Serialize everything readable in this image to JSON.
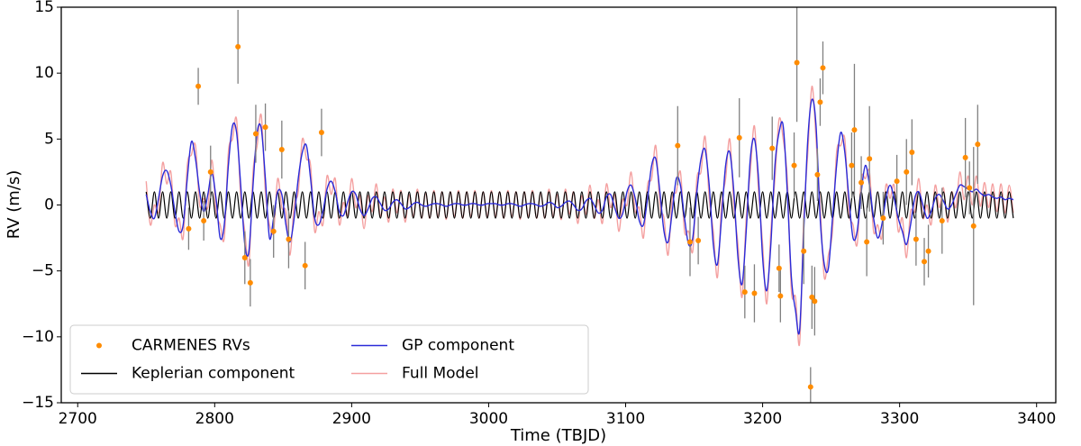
{
  "chart_data": {
    "type": "line",
    "x_label": "Time (TBJD)",
    "y_label": "RV (m/s)",
    "xlim": [
      2688,
      3414
    ],
    "ylim": [
      -15,
      15
    ],
    "xticks": [
      2700,
      2800,
      2900,
      3000,
      3100,
      3200,
      3300,
      3400
    ],
    "yticks": [
      {
        "value": -15,
        "label": "−15"
      },
      {
        "value": -10,
        "label": "−10"
      },
      {
        "value": -5,
        "label": "−5"
      },
      0,
      5,
      10,
      15
    ],
    "legend": "lower left",
    "legend_columns": 2,
    "x": [
      2750,
      2753,
      2756,
      2759,
      2762,
      2765,
      2768,
      2771,
      2774,
      2777,
      2780,
      2783,
      2786,
      2789,
      2792,
      2795,
      2798,
      2801,
      2804,
      2807,
      2810,
      2813,
      2816,
      2819,
      2822,
      2825,
      2828,
      2831,
      2834,
      2837,
      2840,
      2843,
      2846,
      2849,
      2852,
      2855,
      2858,
      2861,
      2864,
      2867,
      2870,
      2873,
      2876,
      2879,
      2882,
      2885,
      2888,
      2891,
      2894,
      2897,
      2900,
      2903,
      2906,
      2909,
      2912,
      2915,
      2918,
      2921,
      2924,
      2927,
      2930,
      2933,
      2936,
      2939,
      2942,
      2945,
      2948,
      2951,
      2954,
      2957,
      2960,
      2963,
      2966,
      2969,
      2972,
      2975,
      2978,
      2981,
      2984,
      2987,
      2990,
      2993,
      2996,
      2999,
      3002,
      3005,
      3008,
      3011,
      3014,
      3017,
      3020,
      3023,
      3026,
      3029,
      3032,
      3035,
      3038,
      3041,
      3044,
      3047,
      3050,
      3053,
      3056,
      3059,
      3062,
      3065,
      3068,
      3071,
      3074,
      3077,
      3080,
      3083,
      3086,
      3089,
      3092,
      3095,
      3098,
      3101,
      3104,
      3107,
      3110,
      3113,
      3116,
      3119,
      3122,
      3125,
      3128,
      3131,
      3134,
      3137,
      3140,
      3143,
      3146,
      3149,
      3152,
      3155,
      3158,
      3161,
      3164,
      3167,
      3170,
      3173,
      3176,
      3179,
      3182,
      3185,
      3188,
      3191,
      3194,
      3197,
      3200,
      3203,
      3206,
      3209,
      3212,
      3215,
      3218,
      3221,
      3224,
      3227,
      3230,
      3233,
      3236,
      3239,
      3242,
      3245,
      3248,
      3251,
      3254,
      3257,
      3260,
      3263,
      3266,
      3269,
      3272,
      3275,
      3278,
      3281,
      3284,
      3287,
      3290,
      3293,
      3296,
      3299,
      3302,
      3305,
      3308,
      3311,
      3314,
      3317,
      3320,
      3323,
      3326,
      3329,
      3332,
      3335,
      3338,
      3341,
      3344,
      3347,
      3350,
      3353,
      3356,
      3359,
      3362,
      3365,
      3368,
      3371,
      3374,
      3377,
      3380,
      3383
    ],
    "series": [
      {
        "name": "CARMENES RVs",
        "kind": "scatter",
        "color": "#ff8c00",
        "error_color": "#808080",
        "x": [
          2781,
          2788,
          2792,
          2797,
          2817,
          2822,
          2826,
          2830,
          2837,
          2843,
          2849,
          2854,
          2866,
          2878,
          3138,
          3147,
          3153,
          3183,
          3187,
          3194,
          3207,
          3212,
          3213,
          3223,
          3225,
          3230,
          3235,
          3236,
          3238,
          3240,
          3242,
          3244,
          3265,
          3267,
          3272,
          3276,
          3278,
          3288,
          3298,
          3305,
          3309,
          3312,
          3318,
          3321,
          3331,
          3348,
          3351,
          3354,
          3357
        ],
        "values": [
          -1.8,
          9.0,
          -1.2,
          2.5,
          12.0,
          -4.0,
          -5.9,
          5.4,
          5.9,
          -2.0,
          4.2,
          -2.6,
          -4.6,
          5.5,
          4.5,
          -2.8,
          -2.7,
          5.1,
          -6.6,
          -6.7,
          4.3,
          -4.8,
          -6.9,
          3.0,
          10.8,
          -3.5,
          -13.8,
          -7.0,
          -7.3,
          2.3,
          7.8,
          10.4,
          3.0,
          5.7,
          1.7,
          -2.8,
          3.5,
          -1.0,
          1.8,
          2.5,
          4.0,
          -2.6,
          -4.3,
          -3.5,
          -1.2,
          3.6,
          1.3,
          -1.6,
          4.6
        ],
        "errors": [
          1.6,
          1.4,
          1.5,
          2.0,
          2.8,
          2.0,
          1.8,
          2.2,
          1.8,
          2.0,
          2.2,
          2.2,
          1.8,
          1.8,
          3.0,
          2.6,
          1.8,
          3.0,
          2.0,
          2.2,
          2.4,
          1.8,
          2.0,
          2.5,
          4.5,
          2.5,
          1.5,
          2.4,
          2.6,
          2.0,
          1.8,
          2.0,
          2.5,
          5.0,
          2.0,
          2.6,
          4.0,
          2.0,
          2.0,
          2.5,
          2.5,
          2.0,
          1.8,
          2.0,
          2.5,
          3.0,
          2.0,
          6.0,
          3.0
        ]
      },
      {
        "name": "Keplerian component",
        "kind": "line",
        "color": "#000000",
        "values": [
          1,
          -1,
          1,
          -1,
          1,
          -1,
          1,
          -1,
          1,
          -1,
          1,
          -1,
          1,
          -1,
          1,
          -1,
          1,
          -1,
          1,
          -1,
          1,
          -1,
          1,
          -1,
          1,
          -1,
          1,
          -1,
          1,
          -1,
          1,
          -1,
          1,
          -1,
          1,
          -1,
          1,
          -1,
          1,
          -1,
          1,
          -1,
          1,
          -1,
          1,
          -1,
          1,
          -1,
          1,
          -1,
          1,
          -1,
          1,
          -1,
          1,
          -1,
          1,
          -1,
          1,
          -1,
          1,
          -1,
          1,
          -1,
          1,
          -1,
          1,
          -1,
          1,
          -1,
          1,
          -1,
          1,
          -1,
          1,
          -1,
          1,
          -1,
          1,
          -1,
          1,
          -1,
          1,
          -1,
          1,
          -1,
          1,
          -1,
          1,
          -1,
          1,
          -1,
          1,
          -1,
          1,
          -1,
          1,
          -1,
          1,
          -1,
          1,
          -1,
          1,
          -1,
          1,
          -1,
          1,
          -1,
          1,
          -1,
          1,
          -1,
          1,
          -1,
          1,
          -1,
          1,
          -1,
          1,
          -1,
          1,
          -1,
          1,
          -1,
          1,
          -1,
          1,
          -1,
          1,
          -1,
          1,
          -1,
          1,
          -1,
          1,
          -1,
          1,
          -1,
          1,
          -1,
          1,
          -1,
          1,
          -1,
          1,
          -1,
          1,
          -1,
          1,
          -1,
          1,
          -1,
          1,
          -1,
          1,
          -1,
          1,
          -1,
          1,
          -1,
          1,
          -1,
          1,
          -1,
          1,
          -1,
          1,
          -1,
          1,
          -1,
          1,
          -1,
          1,
          -1,
          1,
          -1,
          1,
          -1,
          1,
          -1,
          1,
          -1,
          1,
          -1,
          1,
          -1,
          1,
          -1,
          1,
          -1,
          1,
          -1,
          1,
          -1,
          1,
          -1,
          1,
          -1,
          1,
          -1,
          1,
          -1,
          1,
          -1,
          1,
          -1,
          1,
          -1,
          1,
          -1,
          1,
          -1
        ]
      },
      {
        "name": "GP component",
        "kind": "line",
        "color": "#2b2bd8",
        "values": [
          0.8,
          -0.5,
          -1.0,
          0.5,
          2.2,
          2.6,
          1.5,
          -0.5,
          -2.0,
          -1.5,
          2.0,
          4.8,
          3.5,
          1.0,
          -0.5,
          0.8,
          2.4,
          0.5,
          -2.5,
          -1.5,
          3.0,
          6.0,
          5.5,
          1.5,
          -3.0,
          -3.5,
          1.5,
          5.5,
          5.8,
          2.0,
          -2.5,
          -1.0,
          1.0,
          0.8,
          -1.5,
          -2.8,
          -1.0,
          2.0,
          4.0,
          4.5,
          2.0,
          -1.0,
          -1.5,
          -0.5,
          1.2,
          1.8,
          1.0,
          -0.5,
          -0.8,
          0.2,
          1.0,
          0.8,
          -0.3,
          -0.8,
          -0.3,
          0.5,
          0.6,
          0.1,
          -0.4,
          -0.3,
          0.2,
          0.4,
          0.1,
          -0.3,
          -0.2,
          0.1,
          0.2,
          0.0,
          -0.1,
          0.0,
          0.1,
          0.1,
          0.0,
          -0.1,
          0.0,
          0.1,
          0.1,
          0.0,
          0.0,
          0.1,
          0.1,
          0.0,
          0.0,
          0.1,
          0.1,
          0.1,
          0.0,
          0.0,
          0.1,
          0.1,
          0.0,
          -0.1,
          0.0,
          0.1,
          0.1,
          0.0,
          -0.1,
          0.0,
          0.2,
          0.1,
          -0.2,
          -0.1,
          0.2,
          0.3,
          0.0,
          -0.4,
          -0.3,
          0.3,
          0.5,
          0.0,
          -0.6,
          -0.4,
          0.6,
          0.8,
          -0.2,
          -1.0,
          -0.6,
          1.0,
          1.5,
          0.5,
          -1.2,
          -1.5,
          0.5,
          3.0,
          3.5,
          1.0,
          -2.0,
          -2.8,
          -0.5,
          2.0,
          1.5,
          -1.0,
          -3.0,
          -2.5,
          1.0,
          3.5,
          4.2,
          1.5,
          -3.0,
          -4.5,
          -1.0,
          3.0,
          4.0,
          1.0,
          -4.0,
          -6.0,
          -2.0,
          3.5,
          5.0,
          2.0,
          -4.0,
          -6.5,
          -3.0,
          3.0,
          5.5,
          6.0,
          1.0,
          -5.5,
          -8.0,
          -9.5,
          -2.0,
          5.0,
          8.0,
          6.0,
          -1.0,
          -4.5,
          -4.8,
          -1.0,
          3.0,
          5.5,
          4.0,
          0.5,
          -2.5,
          -2.0,
          1.0,
          3.0,
          1.5,
          -1.0,
          -2.5,
          -1.5,
          0.5,
          1.5,
          0.5,
          -1.0,
          -2.0,
          -3.0,
          -1.5,
          0.5,
          1.0,
          0.0,
          -1.0,
          -0.5,
          0.5,
          0.8,
          0.3,
          -0.3,
          0.0,
          0.8,
          1.5,
          1.4,
          1.2,
          1.0,
          1.2,
          0.9,
          0.7,
          0.8,
          0.6,
          0.5,
          0.6,
          0.4,
          0.5,
          0.4
        ]
      },
      {
        "name": "Full Model",
        "kind": "line",
        "color": "#f08080",
        "values": [
          1.8,
          -1.5,
          0.0,
          -0.5,
          3.2,
          1.6,
          2.5,
          -1.5,
          -1.0,
          -2.5,
          3.0,
          3.8,
          4.5,
          0.0,
          0.5,
          -0.2,
          3.4,
          -0.5,
          -1.5,
          -2.5,
          4.0,
          5.0,
          6.5,
          0.5,
          -2.0,
          -4.5,
          2.5,
          4.5,
          6.8,
          1.0,
          -1.5,
          -2.0,
          2.0,
          -0.2,
          -0.5,
          -3.8,
          0.0,
          1.0,
          5.0,
          3.5,
          3.0,
          -2.0,
          -0.5,
          -1.5,
          2.2,
          0.8,
          2.0,
          -1.5,
          0.2,
          -0.8,
          2.0,
          -0.2,
          0.7,
          -1.8,
          0.7,
          -0.5,
          1.6,
          -0.9,
          0.6,
          -1.3,
          1.2,
          -0.6,
          1.1,
          -1.3,
          0.8,
          -0.9,
          1.2,
          -1.0,
          0.9,
          -1.0,
          1.1,
          -0.9,
          1.0,
          -1.1,
          1.0,
          -0.9,
          1.1,
          -1.0,
          1.0,
          -0.9,
          1.1,
          -1.0,
          1.0,
          -0.9,
          1.1,
          -0.9,
          1.0,
          -1.0,
          1.1,
          -0.9,
          1.0,
          -1.1,
          1.0,
          -0.9,
          1.1,
          -1.0,
          0.9,
          -1.0,
          1.2,
          -0.9,
          0.8,
          -1.1,
          1.2,
          -0.7,
          1.0,
          -1.4,
          0.7,
          -0.7,
          1.5,
          -1.0,
          0.4,
          -1.4,
          1.6,
          -0.2,
          0.8,
          -2.0,
          0.4,
          0.0,
          2.5,
          -0.5,
          -0.2,
          -2.5,
          1.5,
          2.0,
          4.5,
          0.0,
          -1.0,
          -3.8,
          0.5,
          1.0,
          2.5,
          -2.0,
          -2.0,
          -3.5,
          2.0,
          2.5,
          5.2,
          0.5,
          -2.0,
          -5.5,
          0.0,
          2.0,
          5.0,
          0.0,
          -3.0,
          -7.0,
          -1.0,
          2.5,
          6.0,
          1.0,
          -3.0,
          -7.5,
          -2.0,
          2.0,
          6.5,
          5.0,
          2.0,
          -6.5,
          -7.0,
          -10.5,
          -1.0,
          4.0,
          9.0,
          5.0,
          0.0,
          -5.5,
          -3.8,
          -2.0,
          4.0,
          4.5,
          5.0,
          -0.5,
          -1.5,
          -3.0,
          2.0,
          2.0,
          2.5,
          -2.0,
          -1.5,
          -2.5,
          1.5,
          0.5,
          1.5,
          -2.0,
          -1.0,
          -4.0,
          -0.5,
          -0.5,
          2.0,
          -1.0,
          0.0,
          -1.5,
          1.5,
          -0.2,
          1.3,
          -1.3,
          1.0,
          -0.2,
          2.5,
          0.4,
          2.2,
          0.0,
          2.2,
          -0.1,
          1.7,
          -0.2,
          1.6,
          -0.5,
          1.6,
          -0.6,
          1.5,
          -0.6
        ]
      }
    ]
  }
}
